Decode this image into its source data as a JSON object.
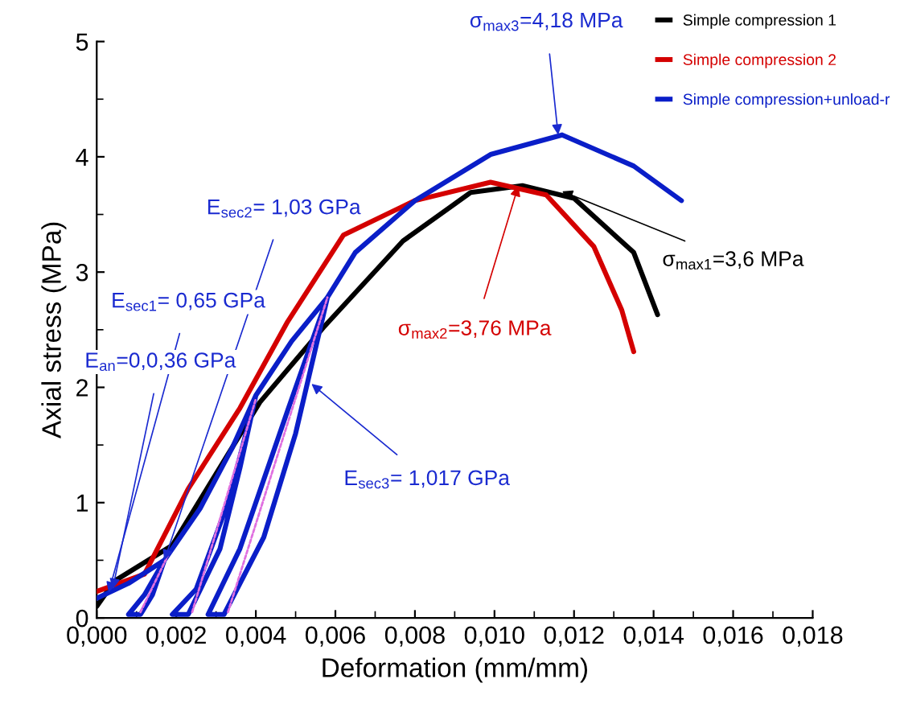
{
  "chart_data": {
    "type": "line",
    "xlabel": "Deformation (mm/mm)",
    "ylabel": "Axial stress (MPa)",
    "xlim": [
      0,
      0.018
    ],
    "ylim": [
      0,
      5
    ],
    "xticks": [
      {
        "value": 0,
        "label": "0,000"
      },
      {
        "value": 0.002,
        "label": "0,002"
      },
      {
        "value": 0.004,
        "label": "0,004"
      },
      {
        "value": 0.006,
        "label": "0,006"
      },
      {
        "value": 0.008,
        "label": "0,008"
      },
      {
        "value": 0.01,
        "label": "0,010"
      },
      {
        "value": 0.012,
        "label": "0,012"
      },
      {
        "value": 0.014,
        "label": "0,014"
      },
      {
        "value": 0.016,
        "label": "0,016"
      },
      {
        "value": 0.018,
        "label": "0,018"
      }
    ],
    "yticks": [
      0,
      1,
      2,
      3,
      4,
      5
    ],
    "grid": false,
    "legend": "top right",
    "series": [
      {
        "name": "Simple compression 1",
        "color": "#000000",
        "x": [
          0,
          0.00045,
          0.0019,
          0.0041,
          0.0057,
          0.0077,
          0.0094,
          0.0107,
          0.012,
          0.0135,
          0.0141
        ],
        "values": [
          0.1,
          0.32,
          0.63,
          1.87,
          2.52,
          3.27,
          3.69,
          3.75,
          3.64,
          3.17,
          2.63
        ]
      },
      {
        "name": "Simple compression 2",
        "color": "#d40000",
        "x": [
          0,
          0.0012,
          0.0023,
          0.0036,
          0.0048,
          0.0062,
          0.008,
          0.0099,
          0.0113,
          0.0125,
          0.0132,
          0.0135
        ],
        "values": [
          0.23,
          0.38,
          1.12,
          1.82,
          2.57,
          3.32,
          3.62,
          3.78,
          3.67,
          3.22,
          2.67,
          2.31
        ]
      },
      {
        "name": "Simple compression+unload-r",
        "color": "#0a1ec8",
        "x": [
          0,
          0.0008,
          0.0017,
          0.0012,
          0.0008,
          0.0011,
          0.0014,
          0.0017,
          0.0026,
          0.0034,
          0.004,
          0.0033,
          0.0025,
          0.0019,
          0.0023,
          0.0031,
          0.0036,
          0.004,
          0.0049,
          0.0058,
          0.0048,
          0.0036,
          0.0028,
          0.0032,
          0.0042,
          0.005,
          0.0058,
          0.0065,
          0.008,
          0.0099,
          0.0117,
          0.0135,
          0.0147
        ],
        "values": [
          0.17,
          0.3,
          0.5,
          0.2,
          0.03,
          0.03,
          0.2,
          0.5,
          0.95,
          1.47,
          1.93,
          1.0,
          0.25,
          0.03,
          0.03,
          0.6,
          1.3,
          1.93,
          2.4,
          2.78,
          1.8,
          0.6,
          0.03,
          0.03,
          0.7,
          1.6,
          2.78,
          3.17,
          3.62,
          4.02,
          4.19,
          3.92,
          3.62
        ]
      },
      {
        "color": "#e070e0",
        "line_style": "dashed",
        "x": [
          0.0011,
          0.0018,
          null,
          0.0024,
          0.004,
          null,
          0.0033,
          0.0058
        ],
        "values": [
          0.05,
          0.55,
          null,
          0.05,
          1.9,
          null,
          0.05,
          2.78
        ]
      }
    ],
    "annotations": [
      {
        "text": "σ$_{max3}$=4,18 MPa",
        "x": 0.0116,
        "y": 4.19
      },
      {
        "text": "E$_{sec2}$= 1,03 GPa",
        "x": 0.0017,
        "y": 0.5
      },
      {
        "text": "σ$_{max1}$=3,6 MPa",
        "x": 0.0117,
        "y": 3.7
      },
      {
        "text": "E$_{sec1}$= 0,65 GPa",
        "x": 0.0003,
        "y": 0.22
      },
      {
        "text": "σ$_{max2}$=3,76 MPa",
        "x": 0.0106,
        "y": 3.75
      },
      {
        "text": "E$_{an}$=0,0,36 GPa",
        "x": 0.0004,
        "y": 0.25
      },
      {
        "text": "E$_{sec3}$= 1,017 GPa",
        "x": 0.0054,
        "y": 2.03
      }
    ]
  }
}
